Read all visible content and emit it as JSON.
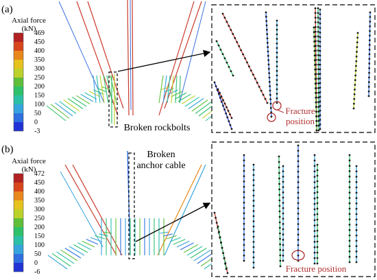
{
  "panels": [
    {
      "label": "(a)",
      "legend_title": "Axial force",
      "legend_unit": "(kN)",
      "legend_ticks": [
        "469",
        "450",
        "400",
        "350",
        "300",
        "250",
        "200",
        "150",
        "100",
        "50",
        "0",
        "-3"
      ],
      "annotation": "Broken rockbolts",
      "zoom_annotation_line1": "Fracture",
      "zoom_annotation_line2": "position"
    },
    {
      "label": "(b)",
      "legend_title": "Axial force",
      "legend_unit": "(kN)",
      "legend_ticks": [
        "472",
        "450",
        "400",
        "350",
        "300",
        "250",
        "200",
        "150",
        "100",
        "50",
        "0",
        "-6"
      ],
      "annotation_line1": "Broken",
      "annotation_line2": "anchor cable",
      "zoom_annotation": "Fracture position"
    }
  ],
  "colors": {
    "scale": [
      "#b22222",
      "#d9451c",
      "#e8881a",
      "#e6c21e",
      "#bcd12a",
      "#5fbf3a",
      "#2ec06a",
      "#2bbfa8",
      "#36a3dc",
      "#2f6fe0",
      "#2233d6"
    ],
    "callout": "#b03030",
    "nodes": "#1a1a1a"
  }
}
